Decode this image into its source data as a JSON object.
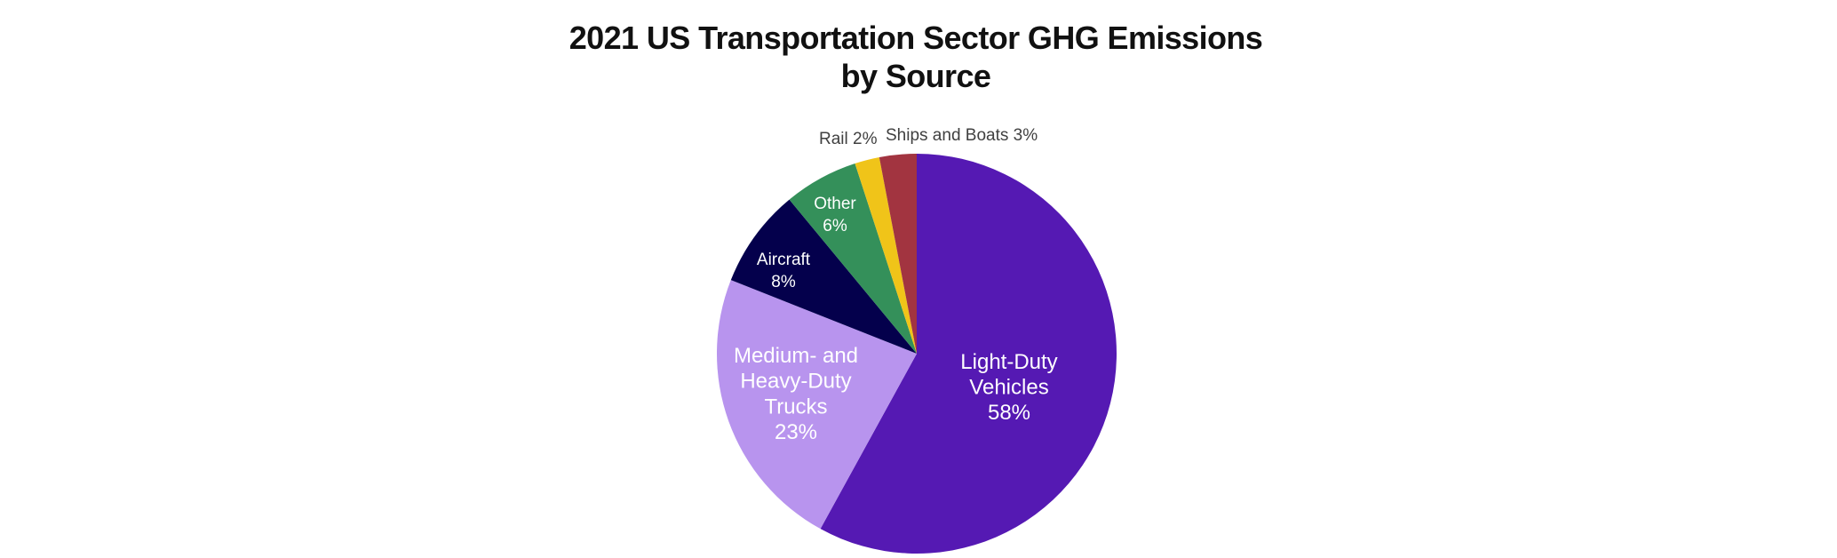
{
  "chart_data": {
    "type": "pie",
    "title": [
      "2021 US Transportation Sector GHG Emissions",
      "by Source"
    ],
    "start_angle": "12 o'clock",
    "direction": "clockwise",
    "slices": [
      {
        "name": "Light-Duty Vehicles",
        "value": 58,
        "label_lines": [
          "Light-Duty",
          "Vehicles",
          "58%"
        ],
        "color": "#5519B3",
        "label_position": "inside"
      },
      {
        "name": "Medium- and Heavy-Duty Trucks",
        "value": 23,
        "label_lines": [
          "Medium- and",
          "Heavy-Duty",
          "Trucks",
          "23%"
        ],
        "color": "#B894EE",
        "label_position": "inside"
      },
      {
        "name": "Aircraft",
        "value": 8,
        "label_lines": [
          "Aircraft",
          "8%"
        ],
        "color": "#04004C",
        "label_position": "inside"
      },
      {
        "name": "Other",
        "value": 6,
        "label_lines": [
          "Other",
          "6%"
        ],
        "color": "#34905A",
        "label_position": "inside"
      },
      {
        "name": "Rail",
        "value": 2,
        "label_lines": [
          "Rail 2%"
        ],
        "color": "#F0C419",
        "label_position": "outside"
      },
      {
        "name": "Ships and Boats",
        "value": 3,
        "label_lines": [
          "Ships and Boats 3%"
        ],
        "color": "#A23440",
        "label_position": "outside"
      }
    ],
    "legend": "none"
  }
}
